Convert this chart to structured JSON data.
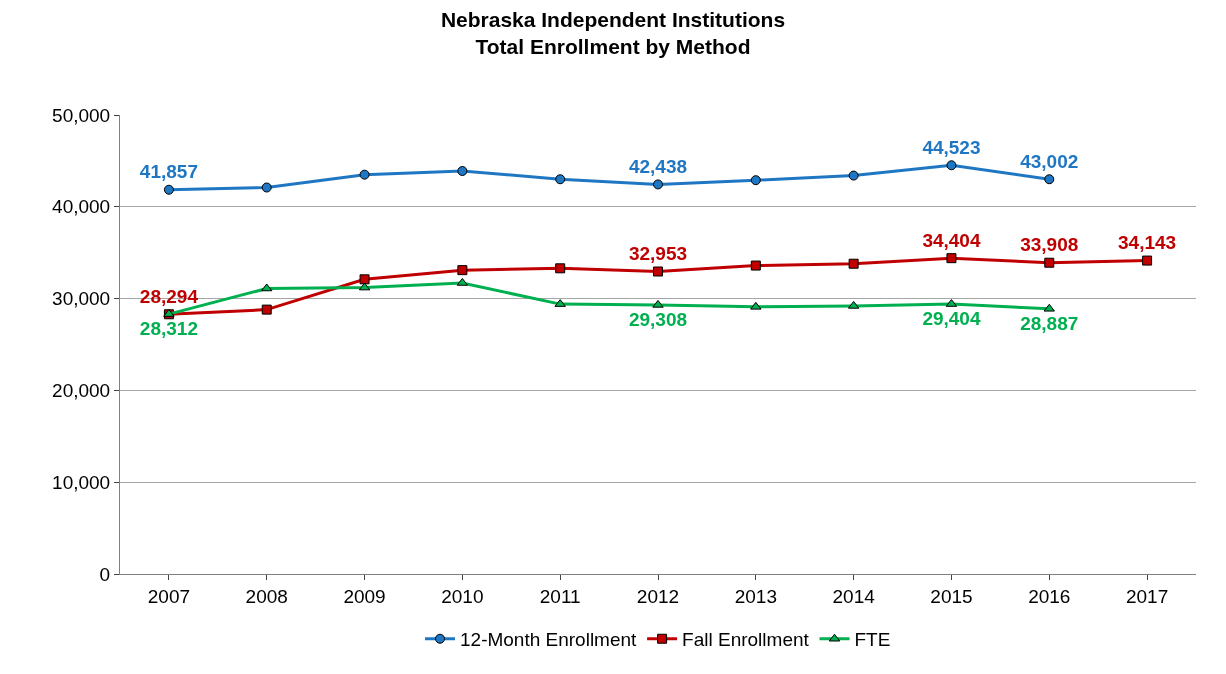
{
  "chart_data": {
    "type": "line",
    "title": "Nebraska Independent Institutions\nTotal Enrollment by Method",
    "categories": [
      "2007",
      "2008",
      "2009",
      "2010",
      "2011",
      "2012",
      "2013",
      "2014",
      "2015",
      "2016",
      "2017"
    ],
    "series": [
      {
        "name": "12-Month Enrollment",
        "color": "#1f77c4",
        "marker": "circle",
        "values": [
          41857,
          42100,
          43500,
          43900,
          43000,
          42438,
          42900,
          43400,
          44523,
          43002,
          null
        ],
        "value_labels": [
          "41,857",
          null,
          null,
          null,
          null,
          "42,438",
          null,
          null,
          "44,523",
          "43,002",
          null
        ]
      },
      {
        "name": "Fall Enrollment",
        "color": "#c00000",
        "marker": "square",
        "values": [
          28294,
          28800,
          32100,
          33100,
          33300,
          32953,
          33600,
          33800,
          34404,
          33908,
          34143
        ],
        "value_labels": [
          "28,294",
          null,
          null,
          null,
          null,
          "32,953",
          null,
          null,
          "34,404",
          "33,908",
          "34,143"
        ]
      },
      {
        "name": "FTE",
        "color": "#00b050",
        "marker": "triangle",
        "values": [
          28312,
          31100,
          31200,
          31700,
          29400,
          29308,
          29100,
          29200,
          29404,
          28887,
          null
        ],
        "value_labels": [
          "28,312",
          null,
          null,
          null,
          null,
          "29,308",
          null,
          null,
          "29,404",
          "28,887",
          null
        ]
      }
    ],
    "ylim": [
      0,
      50000
    ],
    "yticks": [
      {
        "value": 0,
        "label": "0"
      },
      {
        "value": 10000,
        "label": "10,000"
      },
      {
        "value": 20000,
        "label": "20,000"
      },
      {
        "value": 30000,
        "label": "30,000"
      },
      {
        "value": 40000,
        "label": "40,000"
      },
      {
        "value": 50000,
        "label": "50,000"
      }
    ],
    "grid": "y",
    "legend": "bottom",
    "line_style": "solid"
  }
}
